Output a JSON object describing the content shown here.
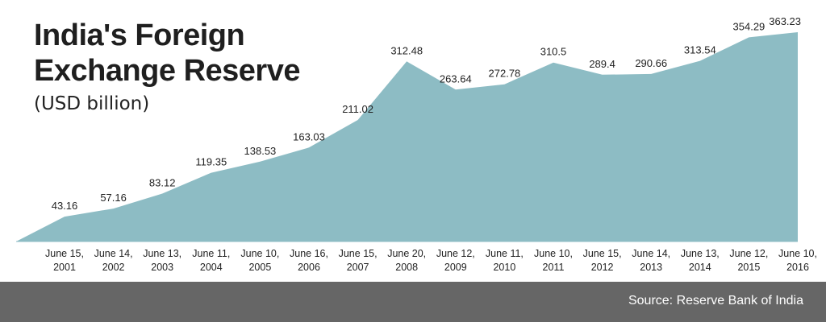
{
  "title_lines": [
    "India's Foreign",
    "Exchange Reserve"
  ],
  "subtitle": "(USD billion)",
  "source": "Source: Reserve Bank of India",
  "colors": {
    "area": "#8dbcc4",
    "footer": "#666666",
    "text": "#222222"
  },
  "chart_data": {
    "type": "area",
    "title": "India's Foreign Exchange Reserve",
    "subtitle": "(USD billion)",
    "categories": [
      [
        "June 15,",
        "2001"
      ],
      [
        "June 14,",
        "2002"
      ],
      [
        "June 13,",
        "2003"
      ],
      [
        "June 11,",
        "2004"
      ],
      [
        "June 10,",
        "2005"
      ],
      [
        "June 16,",
        "2006"
      ],
      [
        "June 15,",
        "2007"
      ],
      [
        "June 20,",
        "2008"
      ],
      [
        "June 12,",
        "2009"
      ],
      [
        "June 11,",
        "2010"
      ],
      [
        "June 10,",
        "2011"
      ],
      [
        "June 15,",
        "2012"
      ],
      [
        "June 14,",
        "2013"
      ],
      [
        "June 13,",
        "2014"
      ],
      [
        "June 12,",
        "2015"
      ],
      [
        "June 10,",
        "2016"
      ]
    ],
    "series": [
      {
        "values": [
          43.16,
          57.16,
          83.12,
          119.35,
          138.53,
          163.03,
          211.02,
          312.48,
          263.64,
          272.78,
          310.5,
          289.4,
          290.66,
          313.54,
          354.29,
          363.23
        ],
        "labels": [
          "43.16",
          "57.16",
          "83.12",
          "119.35",
          "138.53",
          "163.03",
          "211.02",
          "312.48",
          "263.64",
          "272.78",
          "310.5",
          "289.4",
          "290.66",
          "313.54",
          "354.29",
          "363.23"
        ]
      }
    ],
    "ylim": [
      0,
      363.23
    ],
    "grid": false,
    "legend": "none"
  },
  "source_text": "Source: Reserve Bank of India"
}
